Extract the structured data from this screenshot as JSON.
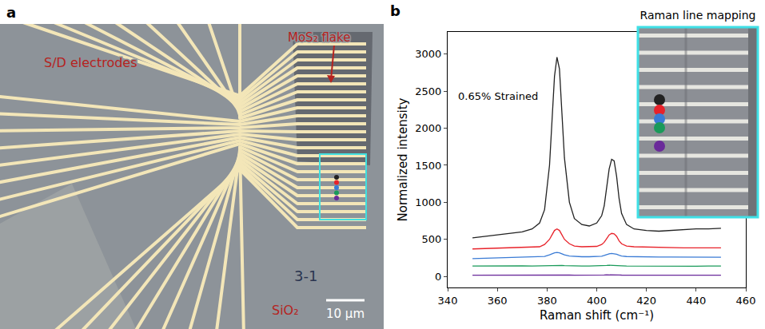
{
  "panel_a": {
    "letter": "a",
    "electrodes_label": "S/D electrodes",
    "flake_label": "MoS₂ flake",
    "substrate_label": "SiO₂",
    "sample_label": "3-1",
    "scale_bar": "10 μm"
  },
  "panel_b": {
    "letter": "b",
    "inset_title": "Raman line mapping"
  },
  "chart_data": {
    "type": "line",
    "x_label": "Raman shift (cm⁻¹)",
    "y_label": "Normalized intensity",
    "annotations": [
      "0.65% Strained"
    ],
    "x": [
      350,
      355,
      360,
      365,
      370,
      374,
      377,
      379,
      381,
      382,
      383,
      384,
      385,
      386,
      387,
      389,
      391,
      394,
      397,
      400,
      402,
      403,
      404,
      405,
      406,
      407,
      408,
      409,
      410,
      412,
      415,
      420,
      425,
      430,
      435,
      440,
      445,
      450
    ],
    "series": [
      {
        "color": "#222222",
        "values": [
          520,
          540,
          560,
          580,
          600,
          640,
          720,
          900,
          1500,
          2100,
          2700,
          2960,
          2800,
          2200,
          1600,
          1000,
          780,
          700,
          680,
          720,
          820,
          950,
          1200,
          1450,
          1580,
          1560,
          1350,
          1050,
          850,
          700,
          640,
          620,
          610,
          620,
          630,
          640,
          640,
          650
        ]
      },
      {
        "color": "#e8222a",
        "values": [
          370,
          375,
          380,
          380,
          385,
          390,
          400,
          430,
          500,
          560,
          620,
          640,
          620,
          560,
          500,
          440,
          410,
          400,
          400,
          405,
          430,
          460,
          510,
          560,
          580,
          575,
          540,
          480,
          440,
          410,
          400,
          395,
          390,
          390,
          385,
          385,
          385,
          385
        ]
      },
      {
        "color": "#3a7bd5",
        "values": [
          240,
          245,
          250,
          250,
          255,
          258,
          262,
          270,
          290,
          305,
          318,
          322,
          318,
          305,
          290,
          275,
          268,
          265,
          265,
          266,
          272,
          282,
          295,
          305,
          310,
          308,
          298,
          285,
          275,
          268,
          265,
          262,
          262,
          260,
          260,
          260,
          258,
          258
        ]
      },
      {
        "color": "#1a9a5a",
        "values": [
          140,
          142,
          138,
          141,
          143,
          140,
          142,
          145,
          148,
          150,
          152,
          152,
          150,
          148,
          145,
          142,
          141,
          140,
          139,
          140,
          142,
          145,
          148,
          150,
          150,
          149,
          147,
          144,
          142,
          140,
          139,
          140,
          141,
          139,
          140,
          138,
          139,
          140
        ]
      },
      {
        "color": "#6a2a9a",
        "values": [
          15,
          16,
          14,
          15,
          17,
          15,
          16,
          18,
          20,
          22,
          23,
          24,
          23,
          21,
          19,
          17,
          16,
          15,
          14,
          15,
          16,
          18,
          20,
          21,
          22,
          21,
          20,
          18,
          17,
          16,
          15,
          15,
          14,
          15,
          16,
          15,
          14,
          15
        ]
      }
    ],
    "xlim": [
      340,
      460
    ],
    "ylim": [
      -150,
      3300
    ],
    "xticks": [
      340,
      360,
      380,
      400,
      420,
      440,
      460
    ],
    "yticks": [
      0,
      500,
      1000,
      1500,
      2000,
      2500,
      3000
    ],
    "grid": false
  }
}
